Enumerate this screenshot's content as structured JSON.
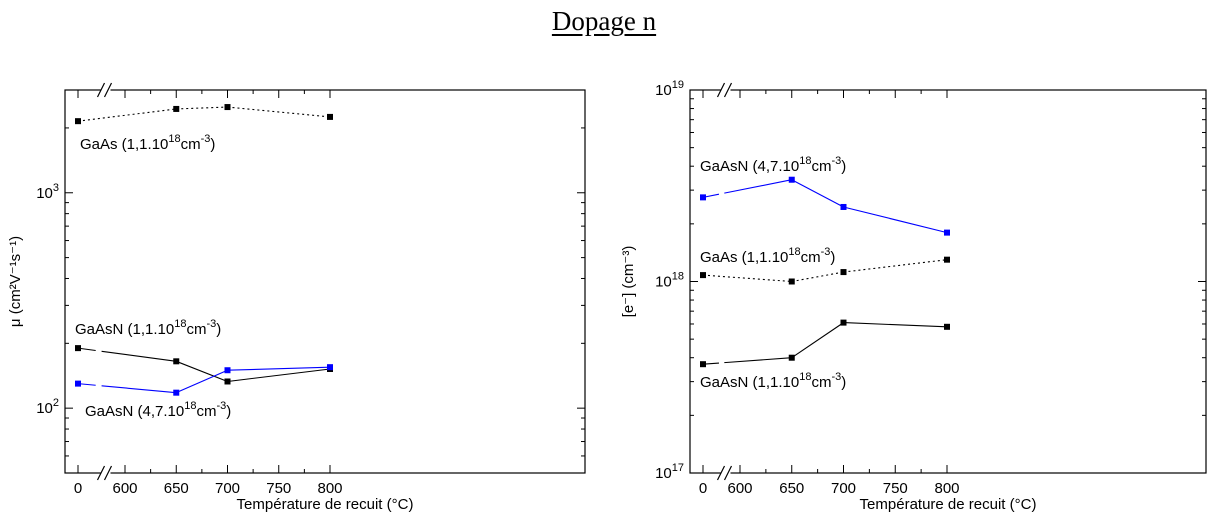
{
  "title": "Dopage n",
  "chart_data": [
    {
      "type": "line",
      "xlabel": "Température de recuit (°C)",
      "ylabel": "μ (cm²V⁻¹s⁻¹)",
      "x_ticks": [
        "0",
        "600",
        "650",
        "700",
        "750",
        "800"
      ],
      "x_break": "//",
      "xlim": [
        600,
        825
      ],
      "yscale": "log",
      "ylim": [
        50,
        3000
      ],
      "y_ticks": [
        {
          "value": 100,
          "base": "10",
          "exp": "2"
        },
        {
          "value": 1000,
          "base": "10",
          "exp": "3"
        }
      ],
      "grid": false,
      "series": [
        {
          "label": "GaAs  (1,1.10",
          "label_exp": "18",
          "label_unit": "cm",
          "label_unit_exp": "-3",
          "label_tail": ")",
          "color": "#000000",
          "style": "dotted",
          "x": [
            "0",
            650,
            700,
            800
          ],
          "y": [
            2150,
            2450,
            2500,
            2250
          ]
        },
        {
          "label": "GaAsN (1,1.10",
          "label_exp": "18",
          "label_unit": "cm",
          "label_unit_exp": "-3",
          "label_tail": ")",
          "color": "#000000",
          "style": "solid",
          "x": [
            "0",
            650,
            700,
            800
          ],
          "y": [
            190,
            165,
            133,
            152
          ]
        },
        {
          "label": "GaAsN (4,7.10",
          "label_exp": "18",
          "label_unit": "cm",
          "label_unit_exp": "-3",
          "label_tail": ")",
          "color": "#0000ff",
          "style": "solid",
          "x": [
            "0",
            650,
            700,
            800
          ],
          "y": [
            130,
            118,
            150,
            155
          ]
        }
      ]
    },
    {
      "type": "line",
      "xlabel": "Température de recuit (°C)",
      "ylabel": "[e⁻] (cm⁻³)",
      "x_ticks": [
        "0",
        "600",
        "650",
        "700",
        "750",
        "800"
      ],
      "x_break": "//",
      "xlim": [
        600,
        825
      ],
      "yscale": "log",
      "ylim": [
        1e+17,
        1e+19
      ],
      "y_ticks": [
        {
          "value": 1e+17,
          "base": "10",
          "exp": "17"
        },
        {
          "value": 1e+18,
          "base": "10",
          "exp": "18"
        },
        {
          "value": 1e+19,
          "base": "10",
          "exp": "19"
        }
      ],
      "grid": false,
      "series": [
        {
          "label": "GaAsN (4,7.10",
          "label_exp": "18",
          "label_unit": "cm",
          "label_unit_exp": "-3",
          "label_tail": ")",
          "color": "#0000ff",
          "style": "solid",
          "x": [
            "0",
            650,
            700,
            800
          ],
          "y": [
            2.75e+18,
            3.4e+18,
            2.45e+18,
            1.8e+18
          ]
        },
        {
          "label": "GaAs (1,1.10",
          "label_exp": "18",
          "label_unit": "cm",
          "label_unit_exp": "-3",
          "label_tail": ")",
          "color": "#000000",
          "style": "dotted",
          "x": [
            "0",
            650,
            700,
            800
          ],
          "y": [
            1.08e+18,
            1e+18,
            1.12e+18,
            1.3e+18
          ]
        },
        {
          "label": "GaAsN (1,1.10",
          "label_exp": "18",
          "label_unit": "cm",
          "label_unit_exp": "-3",
          "label_tail": ")",
          "color": "#000000",
          "style": "solid",
          "x": [
            "0",
            650,
            700,
            800
          ],
          "y": [
            3.7e+17,
            4e+17,
            6.1e+17,
            5.8e+17
          ]
        }
      ]
    }
  ]
}
